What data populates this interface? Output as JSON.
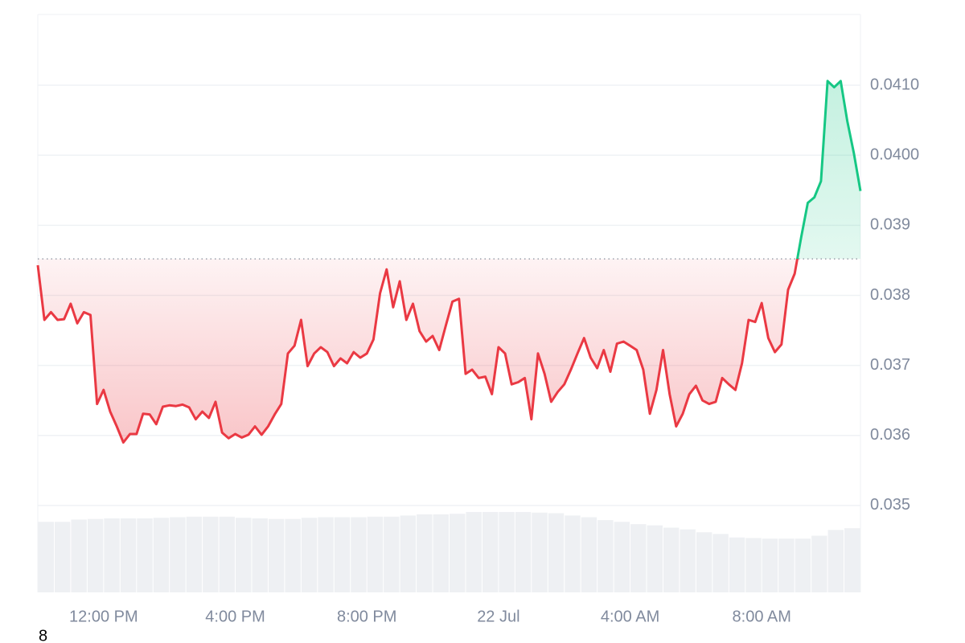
{
  "chart_data": {
    "type": "line",
    "x": [
      0,
      0.2,
      0.4,
      0.6,
      0.8,
      1,
      1.2,
      1.4,
      1.6,
      1.8,
      2,
      2.2,
      2.4,
      2.6,
      2.8,
      3,
      3.2,
      3.4,
      3.6,
      3.8,
      4,
      4.2,
      4.4,
      4.6,
      4.8,
      5,
      5.2,
      5.4,
      5.6,
      5.8,
      6,
      6.2,
      6.4,
      6.6,
      6.8,
      7,
      7.2,
      7.4,
      7.6,
      7.8,
      8,
      8.2,
      8.4,
      8.6,
      8.8,
      9,
      9.2,
      9.4,
      9.6,
      9.8,
      10,
      10.2,
      10.4,
      10.6,
      10.8,
      11,
      11.2,
      11.4,
      11.6,
      11.8,
      12,
      12.2,
      12.4,
      12.6,
      12.8,
      13,
      13.2,
      13.4,
      13.6,
      13.8,
      14,
      14.2,
      14.4,
      14.6,
      14.8,
      15,
      15.2,
      15.4,
      15.6,
      15.8,
      16,
      16.2,
      16.4,
      16.6,
      16.8,
      17,
      17.2,
      17.4,
      17.6,
      17.8,
      18,
      18.2,
      18.4,
      18.6,
      18.8,
      19,
      19.2,
      19.4,
      19.6,
      19.8,
      20,
      20.2,
      20.4,
      20.6,
      20.8,
      21,
      21.2,
      21.4,
      21.6,
      21.8,
      22,
      22.2,
      22.4,
      22.6,
      22.8,
      23,
      23.2,
      23.4,
      23.6,
      23.8,
      24,
      24.2,
      24.4,
      24.6,
      24.8,
      25
    ],
    "values": [
      0.03843,
      0.03765,
      0.03776,
      0.03765,
      0.03766,
      0.03788,
      0.0376,
      0.03776,
      0.03772,
      0.03645,
      0.03665,
      0.03634,
      0.03613,
      0.0359,
      0.03602,
      0.03602,
      0.03631,
      0.0363,
      0.03616,
      0.03641,
      0.03643,
      0.03642,
      0.03644,
      0.0364,
      0.03623,
      0.03634,
      0.03625,
      0.03648,
      0.03604,
      0.03596,
      0.03602,
      0.03597,
      0.03601,
      0.03613,
      0.03601,
      0.03613,
      0.0363,
      0.03645,
      0.03717,
      0.03728,
      0.03765,
      0.03699,
      0.03717,
      0.03726,
      0.03719,
      0.03699,
      0.0371,
      0.03703,
      0.03719,
      0.03711,
      0.03717,
      0.03737,
      0.03803,
      0.03837,
      0.03783,
      0.0382,
      0.03765,
      0.03788,
      0.03749,
      0.03734,
      0.03742,
      0.03722,
      0.03757,
      0.03791,
      0.03795,
      0.03688,
      0.03694,
      0.03682,
      0.03684,
      0.03659,
      0.03726,
      0.03717,
      0.03673,
      0.03676,
      0.03682,
      0.03623,
      0.03717,
      0.03688,
      0.03648,
      0.03662,
      0.03673,
      0.03694,
      0.03717,
      0.03739,
      0.03711,
      0.03696,
      0.03722,
      0.03691,
      0.03731,
      0.03734,
      0.03728,
      0.03722,
      0.03694,
      0.03631,
      0.03665,
      0.03722,
      0.03659,
      0.03613,
      0.03631,
      0.03659,
      0.03671,
      0.0365,
      0.03645,
      0.03648,
      0.03682,
      0.03673,
      0.03665,
      0.03703,
      0.03765,
      0.03762,
      0.03789,
      0.03739,
      0.03719,
      0.0373,
      0.03808,
      0.03831,
      0.03883,
      0.03932,
      0.0394,
      0.03963,
      0.04106,
      0.04097,
      0.04106,
      0.04049,
      0.04003,
      0.03949
    ],
    "baseline": 0.03852,
    "colors": {
      "above": "#16c784",
      "below": "#ea3943",
      "volume": "#eef0f3"
    },
    "xlim": [
      0,
      25
    ],
    "xticks": [
      {
        "value": 2,
        "label": "12:00 PM"
      },
      {
        "value": 6,
        "label": "4:00 PM"
      },
      {
        "value": 10,
        "label": "8:00 PM"
      },
      {
        "value": 14,
        "label": "22 Jul"
      },
      {
        "value": 18,
        "label": "4:00 AM"
      },
      {
        "value": 22,
        "label": "8:00 AM"
      }
    ],
    "ylim": [
      0.03376,
      0.04201
    ],
    "yticks": [
      {
        "value": 0.041,
        "label": "0.0410"
      },
      {
        "value": 0.04,
        "label": "0.0400"
      },
      0.039,
      0.038,
      0.037,
      0.036,
      0.035
    ],
    "grid": true,
    "volume": {
      "lim": [
        0,
        100
      ],
      "values": [
        12.2,
        12.2,
        12.6,
        12.7,
        12.8,
        12.8,
        12.8,
        12.9,
        13.0,
        13.1,
        13.1,
        13.1,
        12.9,
        12.8,
        12.7,
        12.7,
        12.9,
        13.0,
        13.0,
        13.0,
        13.1,
        13.1,
        13.3,
        13.5,
        13.5,
        13.6,
        13.9,
        13.9,
        13.9,
        13.9,
        13.8,
        13.7,
        13.3,
        13.0,
        12.5,
        12.2,
        11.8,
        11.6,
        11.2,
        10.9,
        10.4,
        10.1,
        9.5,
        9.4,
        9.3,
        9.3,
        9.3,
        9.8,
        10.8,
        11.1
      ]
    },
    "footnote": "8"
  }
}
